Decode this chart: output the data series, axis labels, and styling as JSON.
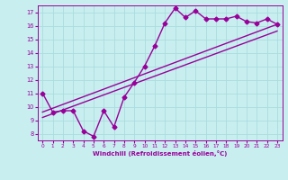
{
  "xlabel": "Windchill (Refroidissement éolien,°C)",
  "background_color": "#c8eef0",
  "grid_color": "#aadddd",
  "line_color": "#990099",
  "xlim": [
    -0.5,
    23.5
  ],
  "ylim": [
    7.5,
    17.5
  ],
  "xticks": [
    0,
    1,
    2,
    3,
    4,
    5,
    6,
    7,
    8,
    9,
    10,
    11,
    12,
    13,
    14,
    15,
    16,
    17,
    18,
    19,
    20,
    21,
    22,
    23
  ],
  "yticks": [
    8,
    9,
    10,
    11,
    12,
    13,
    14,
    15,
    16,
    17
  ],
  "line1_x": [
    0,
    1,
    2,
    3,
    4,
    5,
    6,
    7,
    8,
    9,
    10,
    11,
    12,
    13,
    14,
    15,
    16,
    17,
    18,
    19,
    20,
    21,
    22,
    23
  ],
  "line1_y": [
    11.0,
    9.6,
    9.7,
    9.7,
    8.2,
    7.8,
    9.7,
    8.5,
    10.7,
    11.8,
    13.0,
    14.5,
    16.2,
    17.3,
    16.6,
    17.1,
    16.5,
    16.5,
    16.5,
    16.7,
    16.3,
    16.2,
    16.5,
    16.1
  ],
  "line2_x": [
    0,
    23
  ],
  "line2_y": [
    9.6,
    16.1
  ],
  "line3_x": [
    0,
    23
  ],
  "line3_y": [
    9.2,
    15.6
  ],
  "marker": "D",
  "markersize": 2.5,
  "linewidth": 1.0
}
